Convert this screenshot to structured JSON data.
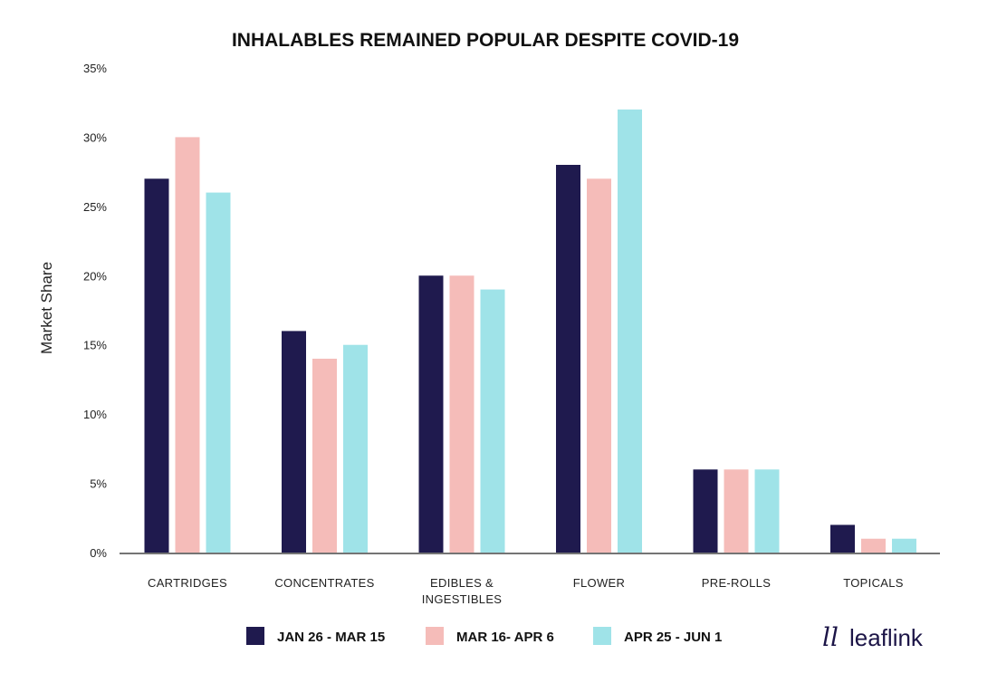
{
  "chart_data": {
    "type": "bar",
    "title": "INHALABLES REMAINED POPULAR DESPITE COVID-19",
    "xlabel": "",
    "ylabel": "Market Share",
    "ylim": [
      0,
      35
    ],
    "yticks": [
      0,
      5,
      10,
      15,
      20,
      25,
      30,
      35
    ],
    "ytick_labels": [
      "0%",
      "5%",
      "10%",
      "15%",
      "20%",
      "25%",
      "30%",
      "35%"
    ],
    "categories": [
      [
        "CARTRIDGES"
      ],
      [
        "CONCENTRATES"
      ],
      [
        "EDIBLES &",
        "INGESTIBLES"
      ],
      [
        "FLOWER"
      ],
      [
        "PRE-ROLLS"
      ],
      [
        "TOPICALS"
      ]
    ],
    "series": [
      {
        "name": "JAN 26 - MAR 15",
        "color": "#1f1a4e",
        "values": [
          27,
          16,
          20,
          28,
          6,
          2
        ]
      },
      {
        "name": "MAR 16- APR 6",
        "color": "#f5bcb9",
        "values": [
          30,
          14,
          20,
          27,
          6,
          1
        ]
      },
      {
        "name": "APR 25 - JUN 1",
        "color": "#9fe3e8",
        "values": [
          26,
          15,
          19,
          32,
          6,
          1
        ]
      }
    ],
    "legend_position": "bottom",
    "grid": false
  },
  "logo": {
    "mark": "ll",
    "text": "leaflink",
    "color": "#1c1547"
  }
}
